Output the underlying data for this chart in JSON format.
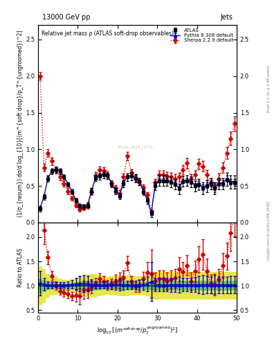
{
  "title_top": "13000 GeV pp",
  "title_right": "Jets",
  "plot_title": "Relative jet mass ρ (ATLAS soft-drop observables)",
  "xlabel": "log_{10}[(m^{soft drop}/p_T^{ungroomed})^2]",
  "ylabel_main": "(1/σ_{resum}) dσ/d log_{10}[(m^{soft drop}/p_T^{ungroomed})^2]",
  "ylabel_ratio": "Ratio to ATLAS",
  "right_label": "Rivet 3.1.10; ≥ 3.4M events",
  "bottom_label": "mcplots.cern.ch [arXiv:1306.3436]",
  "x_data": [
    0.5,
    1.5,
    2.5,
    3.5,
    4.5,
    5.5,
    6.5,
    7.5,
    8.5,
    9.5,
    10.5,
    11.5,
    12.5,
    13.5,
    14.5,
    15.5,
    16.5,
    17.5,
    18.5,
    19.5,
    20.5,
    21.5,
    22.5,
    23.5,
    24.5,
    25.5,
    26.5,
    27.5,
    28.5,
    29.5,
    30.5,
    31.5,
    32.5,
    33.5,
    34.5,
    35.5,
    36.5,
    37.5,
    38.5,
    39.5,
    40.5,
    41.5,
    42.5,
    43.5,
    44.5,
    45.5,
    46.5,
    47.5,
    48.5,
    49.5
  ],
  "atlas_y": [
    0.19,
    0.35,
    0.6,
    0.7,
    0.72,
    0.7,
    0.62,
    0.52,
    0.42,
    0.3,
    0.23,
    0.22,
    0.24,
    0.43,
    0.61,
    0.63,
    0.65,
    0.64,
    0.52,
    0.43,
    0.36,
    0.53,
    0.62,
    0.63,
    0.61,
    0.56,
    0.42,
    0.3,
    0.12,
    0.5,
    0.57,
    0.57,
    0.57,
    0.55,
    0.52,
    0.46,
    0.56,
    0.57,
    0.55,
    0.5,
    0.52,
    0.47,
    0.5,
    0.53,
    0.47,
    0.53,
    0.53,
    0.59,
    0.55,
    0.55
  ],
  "atlas_err": [
    0.04,
    0.04,
    0.04,
    0.04,
    0.04,
    0.04,
    0.03,
    0.03,
    0.03,
    0.03,
    0.03,
    0.03,
    0.03,
    0.04,
    0.04,
    0.04,
    0.04,
    0.04,
    0.04,
    0.04,
    0.04,
    0.05,
    0.05,
    0.05,
    0.05,
    0.05,
    0.04,
    0.04,
    0.04,
    0.06,
    0.07,
    0.07,
    0.07,
    0.07,
    0.07,
    0.07,
    0.07,
    0.07,
    0.07,
    0.07,
    0.08,
    0.08,
    0.08,
    0.08,
    0.08,
    0.08,
    0.08,
    0.09,
    0.09,
    0.09
  ],
  "pythia_y": [
    0.2,
    0.36,
    0.61,
    0.71,
    0.73,
    0.71,
    0.63,
    0.53,
    0.43,
    0.31,
    0.24,
    0.23,
    0.25,
    0.44,
    0.62,
    0.64,
    0.66,
    0.65,
    0.53,
    0.44,
    0.37,
    0.54,
    0.63,
    0.64,
    0.62,
    0.57,
    0.43,
    0.31,
    0.13,
    0.51,
    0.58,
    0.58,
    0.58,
    0.56,
    0.53,
    0.47,
    0.57,
    0.58,
    0.56,
    0.51,
    0.53,
    0.48,
    0.51,
    0.54,
    0.48,
    0.54,
    0.54,
    0.6,
    0.56,
    0.56
  ],
  "pythia_err": [
    0.02,
    0.02,
    0.02,
    0.02,
    0.02,
    0.02,
    0.02,
    0.02,
    0.02,
    0.02,
    0.02,
    0.02,
    0.02,
    0.02,
    0.02,
    0.02,
    0.02,
    0.02,
    0.02,
    0.02,
    0.02,
    0.02,
    0.02,
    0.02,
    0.02,
    0.02,
    0.02,
    0.02,
    0.02,
    0.03,
    0.03,
    0.03,
    0.03,
    0.03,
    0.03,
    0.03,
    0.03,
    0.03,
    0.03,
    0.03,
    0.04,
    0.04,
    0.04,
    0.04,
    0.04,
    0.04,
    0.04,
    0.04,
    0.04,
    0.04
  ],
  "sherpa_y": [
    2.0,
    0.75,
    0.95,
    0.84,
    0.72,
    0.62,
    0.53,
    0.43,
    0.33,
    0.24,
    0.18,
    0.2,
    0.22,
    0.42,
    0.64,
    0.72,
    0.71,
    0.65,
    0.54,
    0.47,
    0.4,
    0.62,
    0.91,
    0.68,
    0.6,
    0.56,
    0.48,
    0.38,
    0.15,
    0.55,
    0.65,
    0.65,
    0.63,
    0.62,
    0.6,
    0.62,
    0.72,
    0.81,
    0.6,
    0.65,
    0.8,
    0.77,
    0.65,
    0.55,
    0.48,
    0.6,
    0.75,
    0.95,
    1.15,
    1.35
  ],
  "sherpa_err": [
    0.05,
    0.05,
    0.05,
    0.05,
    0.05,
    0.04,
    0.04,
    0.04,
    0.03,
    0.03,
    0.03,
    0.03,
    0.03,
    0.04,
    0.05,
    0.05,
    0.05,
    0.05,
    0.04,
    0.04,
    0.04,
    0.05,
    0.06,
    0.05,
    0.05,
    0.05,
    0.04,
    0.04,
    0.03,
    0.05,
    0.06,
    0.06,
    0.06,
    0.06,
    0.06,
    0.06,
    0.07,
    0.07,
    0.06,
    0.06,
    0.07,
    0.07,
    0.07,
    0.06,
    0.06,
    0.07,
    0.07,
    0.08,
    0.09,
    0.1
  ],
  "green_band_lo": [
    0.85,
    0.88,
    0.92,
    0.94,
    0.94,
    0.95,
    0.95,
    0.95,
    0.94,
    0.93,
    0.92,
    0.9,
    0.9,
    0.9,
    0.9,
    0.92,
    0.93,
    0.94,
    0.93,
    0.93,
    0.92,
    0.92,
    0.92,
    0.93,
    0.93,
    0.93,
    0.93,
    0.92,
    0.9,
    0.9,
    0.9,
    0.9,
    0.9,
    0.9,
    0.9,
    0.9,
    0.9,
    0.9,
    0.9,
    0.9,
    0.9,
    0.9,
    0.9,
    0.9,
    0.9,
    0.9,
    0.9,
    0.9,
    0.9,
    0.9
  ],
  "green_band_hi": [
    1.15,
    1.12,
    1.08,
    1.06,
    1.06,
    1.05,
    1.05,
    1.05,
    1.06,
    1.07,
    1.08,
    1.1,
    1.1,
    1.1,
    1.1,
    1.08,
    1.07,
    1.06,
    1.07,
    1.07,
    1.08,
    1.08,
    1.08,
    1.07,
    1.07,
    1.07,
    1.07,
    1.08,
    1.1,
    1.1,
    1.1,
    1.1,
    1.1,
    1.1,
    1.1,
    1.1,
    1.1,
    1.1,
    1.1,
    1.1,
    1.1,
    1.1,
    1.1,
    1.1,
    1.1,
    1.1,
    1.1,
    1.1,
    1.1,
    1.1
  ],
  "yellow_band_lo": [
    0.6,
    0.65,
    0.75,
    0.8,
    0.82,
    0.85,
    0.87,
    0.88,
    0.87,
    0.85,
    0.8,
    0.78,
    0.77,
    0.76,
    0.76,
    0.78,
    0.8,
    0.82,
    0.8,
    0.8,
    0.78,
    0.78,
    0.78,
    0.8,
    0.8,
    0.8,
    0.8,
    0.78,
    0.72,
    0.72,
    0.72,
    0.72,
    0.72,
    0.72,
    0.72,
    0.72,
    0.72,
    0.72,
    0.72,
    0.72,
    0.72,
    0.72,
    0.72,
    0.72,
    0.72,
    0.72,
    0.72,
    0.72,
    0.72,
    0.72
  ],
  "yellow_band_hi": [
    1.4,
    1.35,
    1.25,
    1.2,
    1.18,
    1.15,
    1.13,
    1.12,
    1.13,
    1.15,
    1.2,
    1.22,
    1.23,
    1.24,
    1.24,
    1.22,
    1.2,
    1.18,
    1.2,
    1.2,
    1.22,
    1.22,
    1.22,
    1.2,
    1.2,
    1.2,
    1.2,
    1.22,
    1.28,
    1.28,
    1.28,
    1.28,
    1.28,
    1.28,
    1.28,
    1.28,
    1.28,
    1.28,
    1.28,
    1.28,
    1.28,
    1.28,
    1.28,
    1.28,
    1.28,
    1.28,
    1.28,
    1.28,
    1.28,
    1.28
  ],
  "xlim": [
    0,
    50
  ],
  "ylim_main": [
    0.0,
    2.7
  ],
  "ylim_ratio": [
    0.45,
    2.3
  ],
  "color_atlas": "#000000",
  "color_pythia": "#0000cc",
  "color_sherpa": "#cc0000",
  "color_green_band": "#00aa44",
  "color_yellow_band": "#dddd00",
  "atlas_label": "ATLAS",
  "pythia_label": "Pythia 8.308 default",
  "sherpa_label": "Sherpa 2.2.9 default",
  "watermark": "ATLAS_2019_I1772..",
  "x_ticks_main": [
    0,
    10,
    20,
    30,
    40,
    50
  ],
  "x_ticks_ratio": [
    0,
    10,
    20,
    30,
    40,
    50
  ],
  "yticks_main": [
    0.0,
    0.5,
    1.0,
    1.5,
    2.0,
    2.5
  ],
  "yticks_ratio": [
    0.5,
    1.0,
    1.5,
    2.0
  ]
}
